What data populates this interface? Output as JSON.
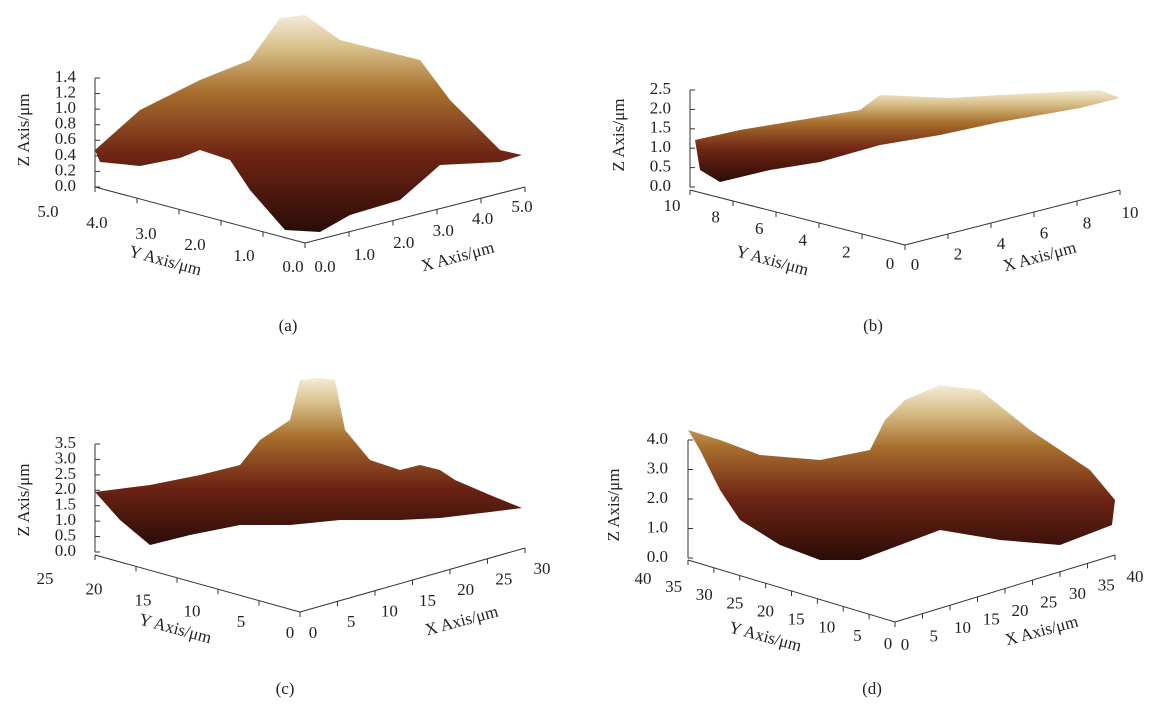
{
  "chart_data": [
    {
      "type": "surface",
      "caption": "(a)",
      "zlabel": "Z Axis/μm",
      "ylabel": "Y Axis/μm",
      "xlabel": "X Axis/μm",
      "zlim": [
        0,
        1.4
      ],
      "zticks": [
        {
          "value": 0,
          "label": "0.0"
        },
        {
          "value": 0.2,
          "label": "0.2"
        },
        {
          "value": 0.4,
          "label": "0.4"
        },
        {
          "value": 0.6,
          "label": "0.6"
        },
        {
          "value": 0.8,
          "label": "0.8"
        },
        {
          "value": 1,
          "label": "1.0"
        },
        {
          "value": 1.2,
          "label": "1.2"
        },
        {
          "value": 1.4,
          "label": "1.4"
        }
      ],
      "ylim": [
        0,
        5
      ],
      "yticks": [
        {
          "value": 5,
          "label": "5.0"
        },
        {
          "value": 4,
          "label": "4.0"
        },
        {
          "value": 3,
          "label": "3.0"
        },
        {
          "value": 2,
          "label": "2.0"
        },
        {
          "value": 1,
          "label": "1.0"
        },
        {
          "value": 0,
          "label": "0.0"
        }
      ],
      "xlim": [
        0,
        5
      ],
      "xticks": [
        {
          "value": 0,
          "label": "0.0"
        },
        {
          "value": 1,
          "label": "1.0"
        },
        {
          "value": 2,
          "label": "2.0"
        },
        {
          "value": 3,
          "label": "3.0"
        },
        {
          "value": 4,
          "label": "4.0"
        },
        {
          "value": 5,
          "label": "5.0"
        }
      ]
    },
    {
      "type": "surface",
      "caption": "(b)",
      "zlabel": "Z Axis/μm",
      "ylabel": "Y Axis/μm",
      "xlabel": "X Axis/μm",
      "zlim": [
        0,
        2.5
      ],
      "zticks": [
        {
          "value": 0,
          "label": "0.0"
        },
        0.5,
        {
          "value": 1,
          "label": "1.0"
        },
        1.5,
        {
          "value": 2,
          "label": "2.0"
        },
        2.5
      ],
      "ylim": [
        0,
        10
      ],
      "yticks": [
        10,
        8,
        6,
        4,
        2,
        0
      ],
      "xlim": [
        0,
        10
      ],
      "xticks": [
        0,
        2,
        4,
        6,
        8,
        10
      ]
    },
    {
      "type": "surface",
      "caption": "(c)",
      "zlabel": "Z Axis/μm",
      "ylabel": "Y Axis/μm",
      "xlabel": "X Axis/μm",
      "zlim": [
        0,
        3.5
      ],
      "zticks": [
        {
          "value": 0,
          "label": "0.0"
        },
        0.5,
        {
          "value": 1,
          "label": "1.0"
        },
        1.5,
        {
          "value": 2,
          "label": "2.0"
        },
        2.5,
        {
          "value": 3,
          "label": "3.0"
        },
        3.5
      ],
      "ylim": [
        0,
        25
      ],
      "yticks": [
        25,
        20,
        15,
        10,
        5,
        0
      ],
      "xlim": [
        0,
        30
      ],
      "xticks": [
        0,
        5,
        10,
        15,
        20,
        25,
        30
      ]
    },
    {
      "type": "surface",
      "caption": "(d)",
      "zlabel": "Z Axis/μm",
      "ylabel": "Y Axis/μm",
      "xlabel": "X Axis/μm",
      "zlim": [
        0,
        4
      ],
      "zticks": [
        {
          "value": 0,
          "label": "0.0"
        },
        {
          "value": 1,
          "label": "1.0"
        },
        {
          "value": 2,
          "label": "2.0"
        },
        {
          "value": 3,
          "label": "3.0"
        },
        {
          "value": 4,
          "label": "4.0"
        }
      ],
      "ylim": [
        0,
        40
      ],
      "yticks": [
        40,
        35,
        30,
        25,
        20,
        15,
        10,
        5,
        0
      ],
      "xlim": [
        0,
        40
      ],
      "xticks": [
        0,
        5,
        10,
        15,
        20,
        25,
        30,
        35,
        40
      ]
    }
  ]
}
